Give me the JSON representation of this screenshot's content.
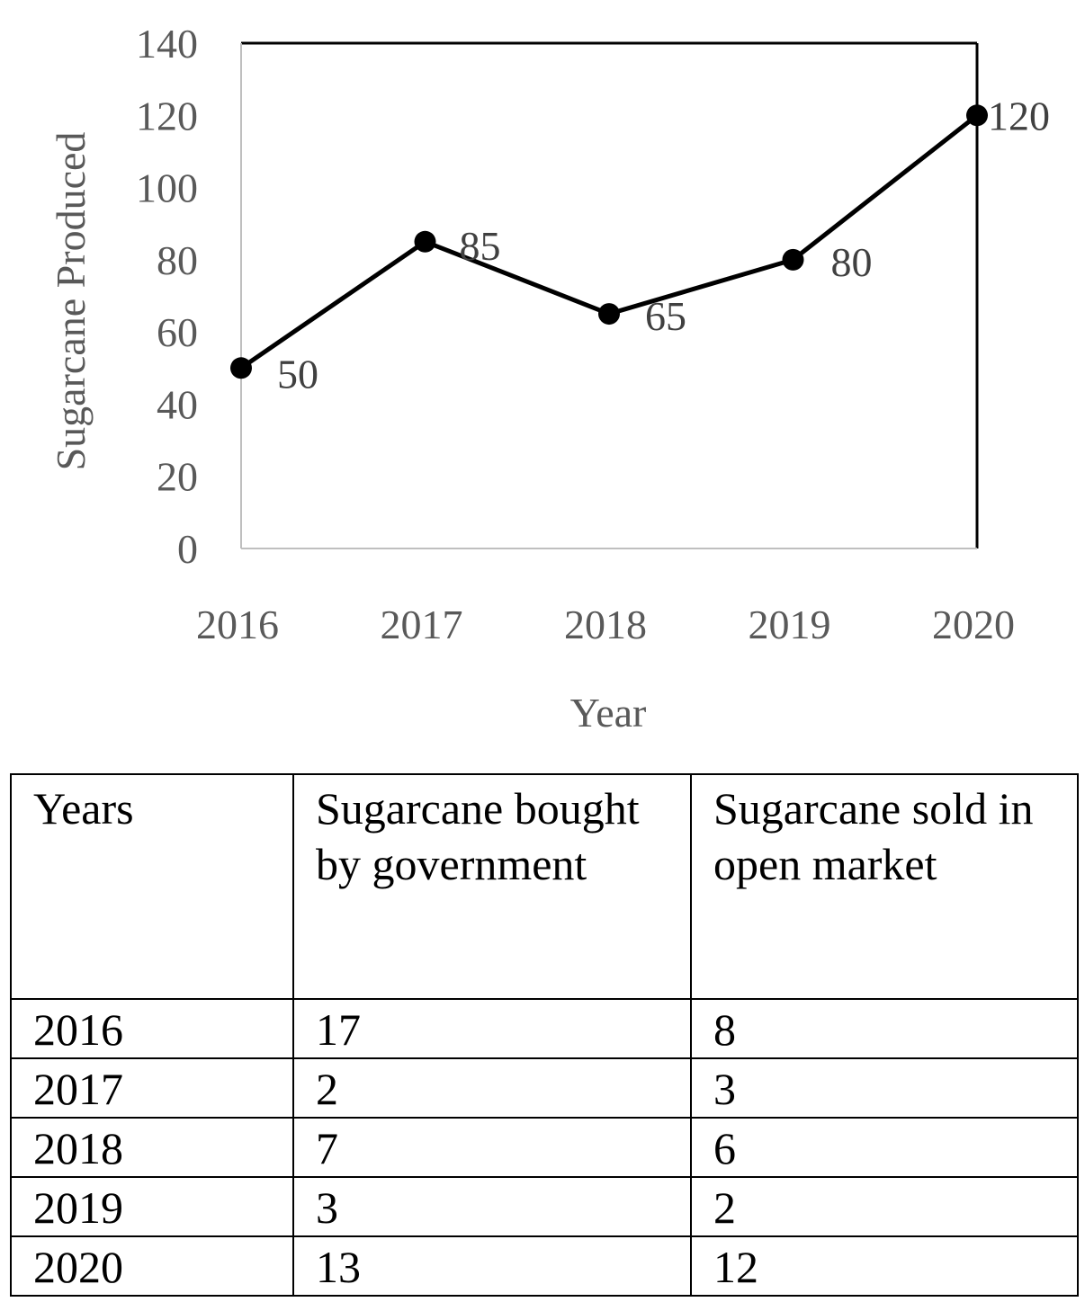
{
  "chart_data": {
    "type": "line",
    "title": "",
    "xlabel": "Year",
    "ylabel": "Sugarcane Produced",
    "categories": [
      "2016",
      "2017",
      "2018",
      "2019",
      "2020"
    ],
    "series": [
      {
        "values": [
          50,
          85,
          65,
          80,
          120
        ]
      }
    ],
    "data_labels": [
      "50",
      "85",
      "65",
      "80",
      "120"
    ],
    "ylim": [
      0,
      140
    ],
    "yticks": [
      "0",
      "20",
      "40",
      "60",
      "80",
      "100",
      "120",
      "140"
    ],
    "grid": false,
    "legend": "none",
    "colors": {
      "line": "#000000",
      "axis_text": "#595959",
      "frame": "#000000"
    }
  },
  "table": {
    "headers": [
      "Years",
      "Sugarcane bought by government",
      "Sugarcane sold in open market"
    ],
    "rows": [
      [
        "2016",
        "17",
        "8"
      ],
      [
        "2017",
        "2",
        "3"
      ],
      [
        "2018",
        "7",
        "6"
      ],
      [
        "2019",
        "3",
        "2"
      ],
      [
        "2020",
        "13",
        "12"
      ]
    ]
  }
}
